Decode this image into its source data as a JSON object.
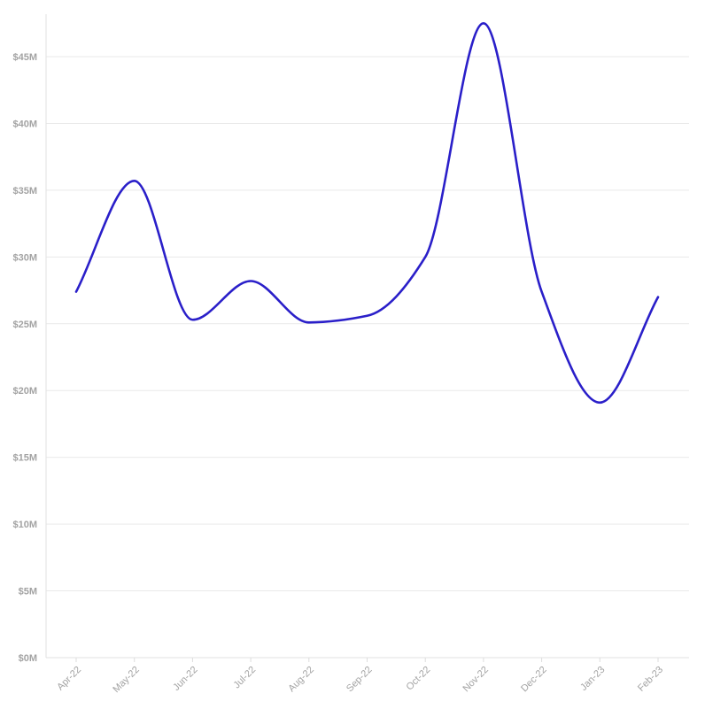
{
  "chart_data": {
    "type": "line",
    "title": "",
    "xlabel": "",
    "ylabel": "",
    "categories": [
      "Apr-22",
      "May-22",
      "Jun-22",
      "Jul-22",
      "Aug-22",
      "Sep-22",
      "Oct-22",
      "Nov-22",
      "Dec-22",
      "Jan-23",
      "Feb-23"
    ],
    "series": [
      {
        "values": [
          27.4,
          35.7,
          25.3,
          28.2,
          25.1,
          25.6,
          30.0,
          47.5,
          27.4,
          19.1,
          27.0
        ],
        "color": "#2a1fc9"
      }
    ],
    "ylim": [
      0,
      48
    ],
    "y_ticks": [
      {
        "value": 0,
        "label": "$0M"
      },
      {
        "value": 5,
        "label": "$5M"
      },
      {
        "value": 10,
        "label": "$10M"
      },
      {
        "value": 15,
        "label": "$15M"
      },
      {
        "value": 20,
        "label": "$20M"
      },
      {
        "value": 25,
        "label": "$25M"
      },
      {
        "value": 30,
        "label": "$30M"
      },
      {
        "value": 35,
        "label": "$35M"
      },
      {
        "value": 40,
        "label": "$40M"
      },
      {
        "value": 45,
        "label": "$45M"
      }
    ],
    "grid": true,
    "curve": "smooth",
    "x_label_rotation": "diagonal"
  }
}
